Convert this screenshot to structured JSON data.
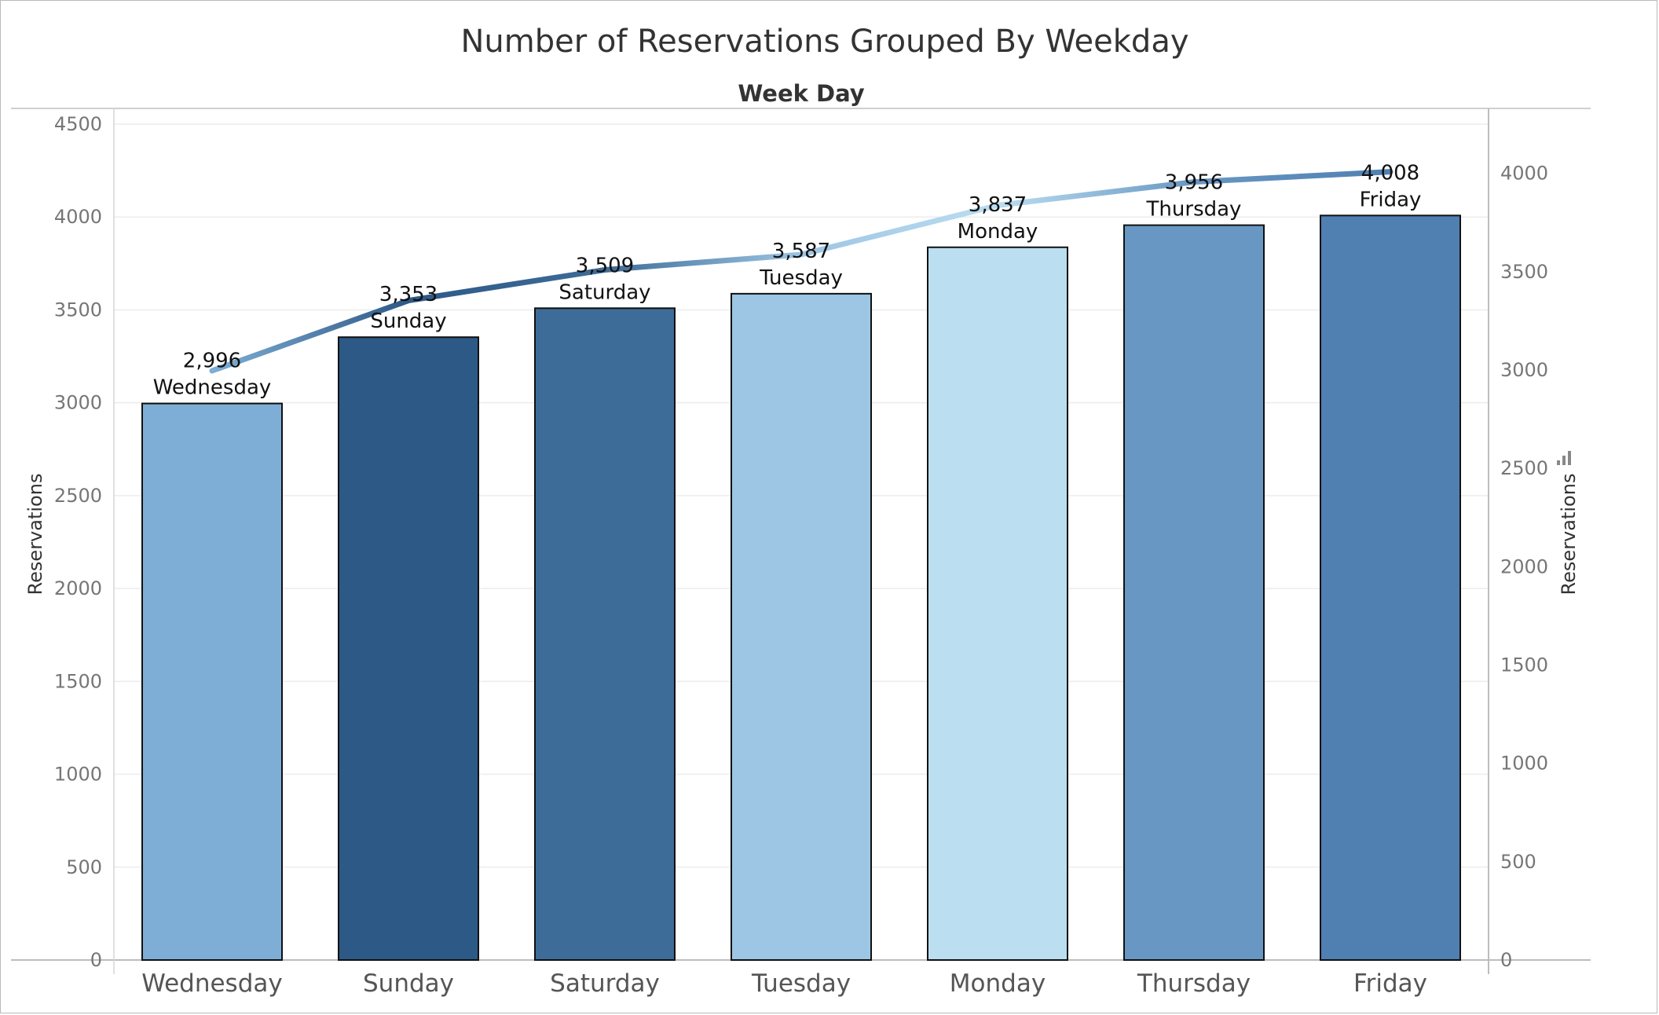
{
  "chart_data": {
    "type": "bar",
    "title": "Number of Reservations Grouped By Weekday",
    "column_header": "Week Day",
    "categories": [
      "Wednesday",
      "Sunday",
      "Saturday",
      "Tuesday",
      "Monday",
      "Thursday",
      "Friday"
    ],
    "values": [
      2996,
      3353,
      3509,
      3587,
      3837,
      3956,
      4008
    ],
    "value_labels": [
      "2,996",
      "3,353",
      "3,509",
      "3,587",
      "3,837",
      "3,956",
      "4,008"
    ],
    "bar_colors": [
      "#7eaed5",
      "#2d5986",
      "#3e6c98",
      "#9dc5e4",
      "#bbdef0",
      "#6897c3",
      "#5080b1"
    ],
    "line": {
      "type": "line",
      "values": [
        2996,
        3353,
        3509,
        3587,
        3837,
        3956,
        4008
      ]
    },
    "ylabel_left": "Reservations",
    "ylabel_right": "Reservations",
    "ylim_left": [
      0,
      4500
    ],
    "yticks_left": [
      "0",
      "500",
      "1000",
      "1500",
      "2000",
      "2500",
      "3000",
      "3500",
      "4000",
      "4500"
    ],
    "ylim_right": [
      0,
      4250
    ],
    "yticks_right": [
      "0",
      "500",
      "1000",
      "1500",
      "2000",
      "2500",
      "3000",
      "3500",
      "4000"
    ],
    "grid": true,
    "legend": "none"
  }
}
